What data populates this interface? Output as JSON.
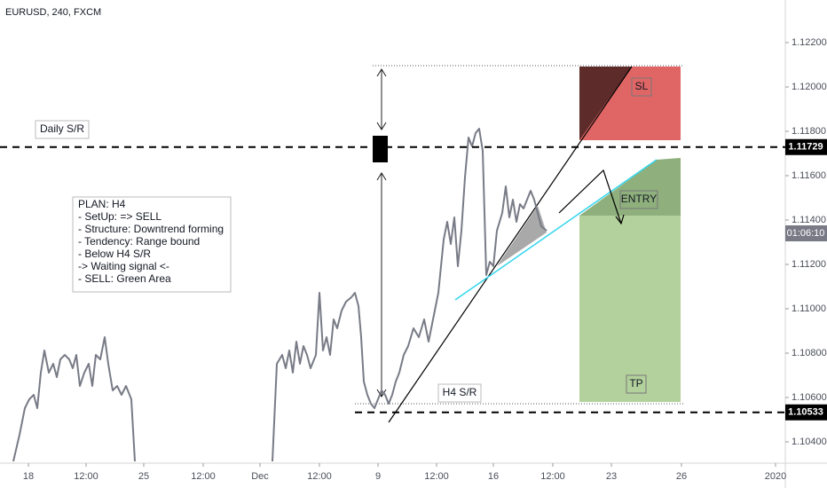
{
  "chart_data": {
    "type": "line",
    "title": "EURUSD, 240, FXCM",
    "x": [
      3.75,
      5.5,
      7,
      8.25,
      9.5,
      10.5,
      11.5,
      12.5,
      13.75,
      15,
      16,
      17,
      18.25,
      19.5,
      20.5,
      21.5,
      22.5,
      23.75,
      25,
      26,
      27,
      28.25,
      29.5,
      30.5,
      31.75,
      33,
      34.25,
      35.5,
      37,
      38,
      57,
      76.75,
      78,
      79.5,
      80.5,
      81.5,
      82.5,
      83.5,
      84.5,
      85.5,
      86.5,
      87.5,
      89,
      90,
      91,
      92,
      93,
      94,
      95,
      96.25,
      97.5,
      99,
      100,
      101,
      101.75,
      102.5,
      103.5,
      104.5,
      105.5,
      106.5,
      107.5,
      108.5,
      109.5,
      110.5,
      111.5,
      112.5,
      113.75,
      115,
      116.5,
      118,
      119.5,
      120.75,
      122,
      123.5,
      125,
      126,
      127,
      128,
      129,
      130,
      131,
      132,
      133,
      134,
      135,
      136,
      137,
      138,
      139,
      140,
      141.5,
      142.5,
      143.5,
      144.5,
      145.5,
      146.5,
      147.5,
      148.5,
      149.5,
      150.5,
      151.5,
      152.5,
      154
    ],
    "series": [
      {
        "color": "#787b86",
        "values": [
          1.10312,
          1.10432,
          1.10552,
          1.10592,
          1.10612,
          1.10552,
          1.10712,
          1.10812,
          1.10712,
          1.10752,
          1.10692,
          1.10772,
          1.10792,
          1.10772,
          1.10732,
          1.10792,
          1.10652,
          1.10712,
          1.10752,
          1.10652,
          1.10792,
          1.10772,
          1.10872,
          1.10752,
          1.10632,
          1.10652,
          1.10612,
          1.10652,
          1.10592,
          1.10312,
          null,
          1.10312,
          1.10752,
          1.10792,
          1.10732,
          1.10812,
          1.10712,
          1.10852,
          1.10752,
          1.10832,
          1.10792,
          1.10732,
          1.10792,
          1.11072,
          1.10812,
          1.10872,
          1.10792,
          1.10952,
          1.10912,
          1.10992,
          1.11032,
          1.11052,
          1.11072,
          1.11012,
          1.10872,
          1.10672,
          1.10612,
          1.10572,
          1.10552,
          1.10592,
          1.10632,
          1.10612,
          1.10572,
          1.10612,
          1.10672,
          1.10712,
          1.10792,
          1.10832,
          1.10912,
          1.10872,
          1.10952,
          1.10852,
          1.10952,
          1.11072,
          1.11312,
          1.11392,
          1.11292,
          1.11412,
          1.11192,
          1.11352,
          1.11592,
          1.11772,
          1.11732,
          1.11792,
          1.11812,
          1.11712,
          1.11152,
          1.11212,
          1.11192,
          1.11352,
          1.11432,
          1.11552,
          1.11412,
          1.11492,
          1.11392,
          1.11472,
          1.11452,
          1.11492,
          1.11532,
          1.11492,
          1.11432,
          1.11372,
          1.11352
        ]
      }
    ],
    "xlim": [
      0,
      221
    ],
    "xticks": [
      {
        "value": 8,
        "label": "18"
      },
      {
        "value": 24.25,
        "label": "12:00"
      },
      {
        "value": 40.5,
        "label": "25"
      },
      {
        "value": 57.25,
        "label": "12:00"
      },
      {
        "value": 73.25,
        "label": "Dec"
      },
      {
        "value": 90,
        "label": "12:00"
      },
      {
        "value": 106.5,
        "label": "9"
      },
      {
        "value": 123,
        "label": "12:00"
      },
      {
        "value": 139,
        "label": "16"
      },
      {
        "value": 155.75,
        "label": "12:00"
      },
      {
        "value": 172.25,
        "label": "23"
      },
      {
        "value": 192,
        "label": "26"
      },
      {
        "value": 218.5,
        "label": "2020"
      }
    ],
    "ylim": [
      1.10304,
      1.12392
    ],
    "yticks": [
      {
        "value": 1.104,
        "label": "1.10400"
      },
      {
        "value": 1.106,
        "label": "1.10600"
      },
      {
        "value": 1.108,
        "label": "1.10800"
      },
      {
        "value": 1.11,
        "label": "1.11000"
      },
      {
        "value": 1.112,
        "label": "1.11200"
      },
      {
        "value": 1.114,
        "label": "1.11400"
      },
      {
        "value": 1.116,
        "label": "1.11600"
      },
      {
        "value": 1.118,
        "label": "1.11800"
      },
      {
        "value": 1.12,
        "label": "1.12000"
      },
      {
        "value": 1.122,
        "label": "1.12200"
      }
    ],
    "grid": false,
    "levels": [
      {
        "label": "Daily S/R",
        "value": 1.11729
      },
      {
        "label": "H4 S/R",
        "value": 1.10533
      }
    ],
    "countdown": "01:06:10",
    "position_labels": {
      "sl": "SL",
      "entry": "ENTRY",
      "tp": "TP"
    },
    "plan": [
      "PLAN: H4",
      "- SetUp: => SELL",
      "- Structure: Downtrend forming",
      "- Tendency: Range bound",
      "- Below H4 S/R",
      "-> Waiting signal <-",
      "- SELL: Green Area"
    ]
  }
}
